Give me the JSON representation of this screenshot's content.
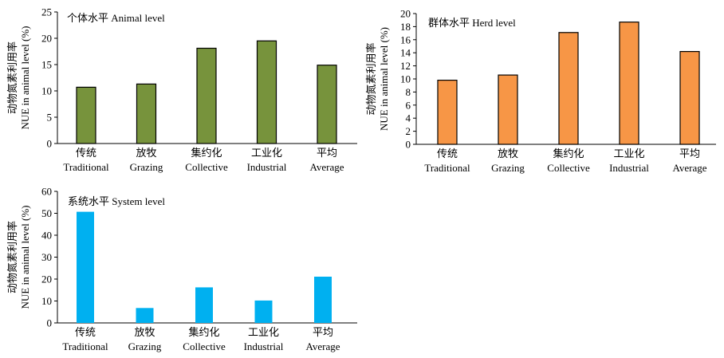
{
  "chart_data": [
    {
      "type": "bar",
      "title": "个体水平 Animal level",
      "ylabel_cn": "动物氮素利用率",
      "ylabel_en": "NUE in animal level (%)",
      "categories_cn": [
        "传统",
        "放牧",
        "集约化",
        "工业化",
        "平均"
      ],
      "categories_en": [
        "Traditional",
        "Grazing",
        "Collective",
        "Industrial",
        "Average"
      ],
      "values": [
        10.7,
        11.3,
        18.1,
        19.5,
        14.9
      ],
      "ylim": [
        0,
        25
      ],
      "yticks": [
        0,
        5,
        10,
        15,
        20,
        25
      ],
      "bar_color": "#77933c",
      "bar_stroke": "#000000",
      "grid": false
    },
    {
      "type": "bar",
      "title": "群体水平 Herd level",
      "ylabel_cn": "动物氮素利用率",
      "ylabel_en": "NUE in animal level (%)",
      "categories_cn": [
        "传统",
        "放牧",
        "集约化",
        "工业化",
        "平均"
      ],
      "categories_en": [
        "Traditional",
        "Grazing",
        "Collective",
        "Industrial",
        "Average"
      ],
      "values": [
        9.8,
        10.6,
        17.1,
        18.7,
        14.2
      ],
      "ylim": [
        0,
        20
      ],
      "yticks": [
        0,
        2,
        4,
        6,
        8,
        10,
        12,
        14,
        16,
        18,
        20
      ],
      "bar_color": "#f79646",
      "bar_stroke": "#000000",
      "grid": false
    },
    {
      "type": "bar",
      "title": "系统水平 System level",
      "ylabel_cn": "动物氮素利用率",
      "ylabel_en": "NUE in animal level (%)",
      "categories_cn": [
        "传统",
        "放牧",
        "集约化",
        "工业化",
        "平均"
      ],
      "categories_en": [
        "Traditional",
        "Grazing",
        "Collective",
        "Industrial",
        "Average"
      ],
      "values": [
        50.7,
        6.8,
        16.2,
        10.2,
        21.1
      ],
      "ylim": [
        0,
        60
      ],
      "yticks": [
        0,
        10,
        20,
        30,
        40,
        50,
        60
      ],
      "bar_color": "#00b0f0",
      "bar_stroke": "none",
      "grid": false
    }
  ]
}
